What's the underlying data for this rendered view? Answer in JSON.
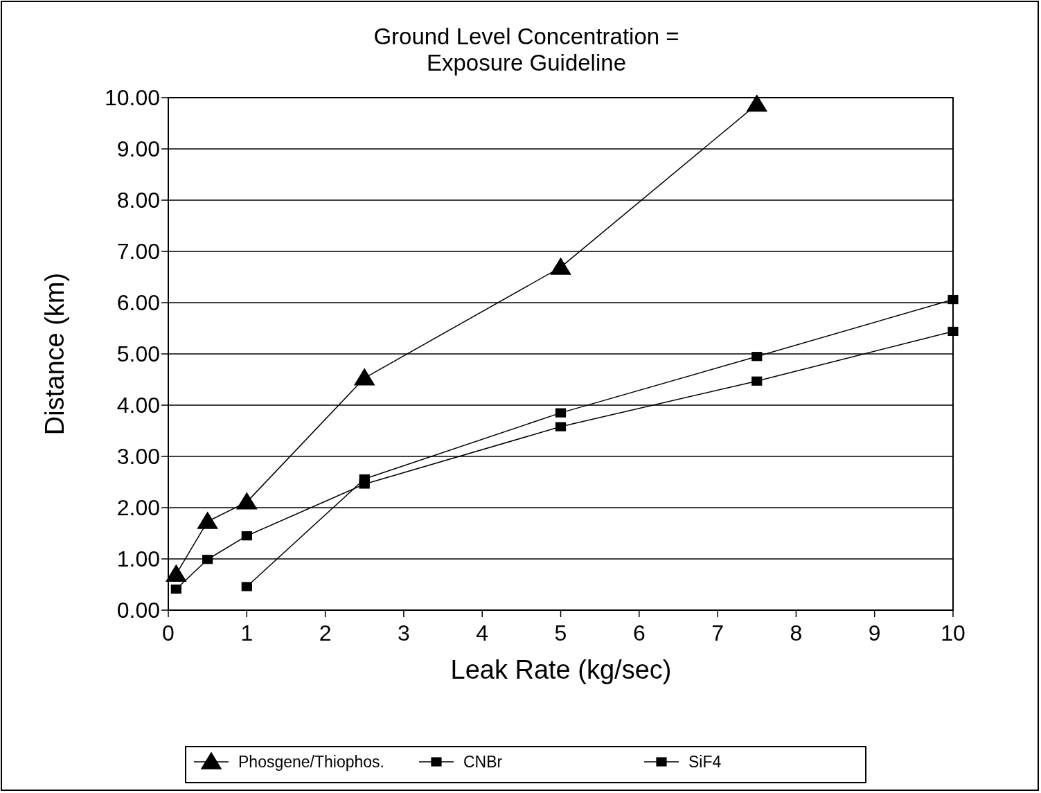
{
  "chart_data": {
    "type": "line",
    "title": "Ground Level Concentration =\nExposure Guideline",
    "xlabel": "Leak Rate (kg/sec)",
    "ylabel": "Distance (km)",
    "xlim": [
      0,
      10
    ],
    "xticks": [
      0,
      1,
      2,
      3,
      4,
      5,
      6,
      7,
      8,
      9,
      10
    ],
    "ylim": [
      0,
      10
    ],
    "yticks": [
      {
        "value": 0,
        "label": "0.00"
      },
      {
        "value": 1,
        "label": "1.00"
      },
      {
        "value": 2,
        "label": "2.00"
      },
      {
        "value": 3,
        "label": "3.00"
      },
      {
        "value": 4,
        "label": "4.00"
      },
      {
        "value": 5,
        "label": "5.00"
      },
      {
        "value": 6,
        "label": "6.00"
      },
      {
        "value": 7,
        "label": "7.00"
      },
      {
        "value": 8,
        "label": "8.00"
      },
      {
        "value": 9,
        "label": "9.00"
      },
      {
        "value": 10,
        "label": "10.00"
      }
    ],
    "grid": "y",
    "legend": "bottom",
    "line_style": "solid",
    "series": [
      {
        "name": "Phosgene/Thiophos.",
        "color": "#000000",
        "marker": "triangle",
        "x": [
          0.1,
          0.5,
          1,
          2.5,
          5,
          7.5
        ],
        "values": [
          0.7,
          1.73,
          2.11,
          4.53,
          6.69,
          9.87
        ]
      },
      {
        "name": "CNBr",
        "color": "#000000",
        "marker": "square",
        "x": [
          1,
          2.5,
          5,
          7.5,
          10
        ],
        "values": [
          0.46,
          2.56,
          3.85,
          4.95,
          6.06
        ]
      },
      {
        "name": "SiF4",
        "color": "#000000",
        "marker": "square",
        "x": [
          0.1,
          0.5,
          1,
          2.5,
          5,
          7.5,
          10
        ],
        "values": [
          0.41,
          0.99,
          1.45,
          2.46,
          3.58,
          4.47,
          5.44
        ]
      }
    ]
  }
}
